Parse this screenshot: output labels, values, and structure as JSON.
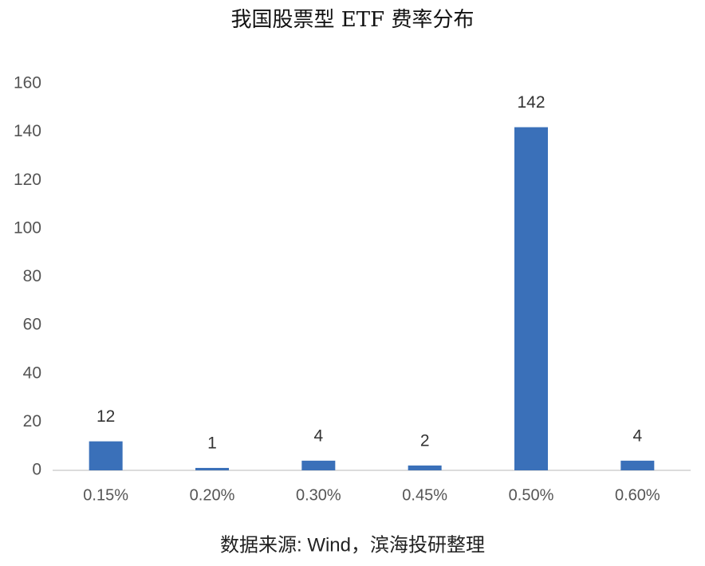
{
  "chart_data": {
    "type": "bar",
    "title": "我国股票型 ETF 费率分布",
    "categories": [
      "0.15%",
      "0.20%",
      "0.30%",
      "0.45%",
      "0.50%",
      "0.60%"
    ],
    "values": [
      12,
      1,
      4,
      2,
      142,
      4
    ],
    "color": "#3a70b9",
    "ylim": [
      0,
      160
    ],
    "yticks": [
      0,
      20,
      40,
      60,
      80,
      100,
      120,
      140,
      160
    ],
    "grid": false,
    "source": "数据来源: Wind，滨海投研整理"
  }
}
